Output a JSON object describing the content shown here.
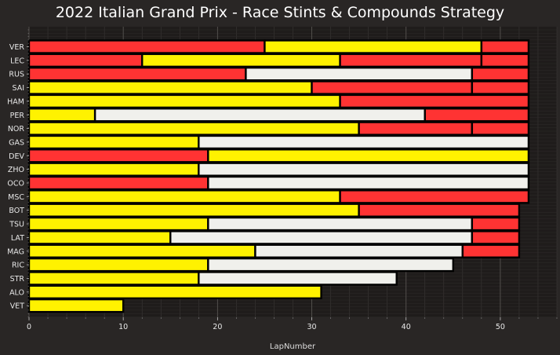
{
  "chart_data": {
    "type": "bar",
    "orientation": "horizontal",
    "stacked": true,
    "title": "2022 Italian Grand Prix - Race Stints & Compounds Strategy",
    "xlabel": "LapNumber",
    "ylabel": "",
    "xlim": [
      0,
      56
    ],
    "xticks": [
      0,
      10,
      20,
      30,
      40,
      50
    ],
    "grid": true,
    "compound_colors": {
      "SOFT": "#ff3333",
      "MEDIUM": "#fff200",
      "HARD": "#f0f0ec"
    },
    "drivers": [
      {
        "driver": "VER",
        "stints": [
          {
            "compound": "SOFT",
            "laps": 25
          },
          {
            "compound": "MEDIUM",
            "laps": 23
          },
          {
            "compound": "SOFT",
            "laps": 5
          }
        ]
      },
      {
        "driver": "LEC",
        "stints": [
          {
            "compound": "SOFT",
            "laps": 12
          },
          {
            "compound": "MEDIUM",
            "laps": 21
          },
          {
            "compound": "SOFT",
            "laps": 15
          },
          {
            "compound": "SOFT",
            "laps": 5
          }
        ]
      },
      {
        "driver": "RUS",
        "stints": [
          {
            "compound": "SOFT",
            "laps": 23
          },
          {
            "compound": "HARD",
            "laps": 24
          },
          {
            "compound": "SOFT",
            "laps": 6
          }
        ]
      },
      {
        "driver": "SAI",
        "stints": [
          {
            "compound": "MEDIUM",
            "laps": 30
          },
          {
            "compound": "SOFT",
            "laps": 17
          },
          {
            "compound": "SOFT",
            "laps": 6
          }
        ]
      },
      {
        "driver": "HAM",
        "stints": [
          {
            "compound": "MEDIUM",
            "laps": 33
          },
          {
            "compound": "SOFT",
            "laps": 20
          }
        ]
      },
      {
        "driver": "PER",
        "stints": [
          {
            "compound": "MEDIUM",
            "laps": 7
          },
          {
            "compound": "HARD",
            "laps": 35
          },
          {
            "compound": "SOFT",
            "laps": 11
          }
        ]
      },
      {
        "driver": "NOR",
        "stints": [
          {
            "compound": "MEDIUM",
            "laps": 35
          },
          {
            "compound": "SOFT",
            "laps": 12
          },
          {
            "compound": "SOFT",
            "laps": 6
          }
        ]
      },
      {
        "driver": "GAS",
        "stints": [
          {
            "compound": "MEDIUM",
            "laps": 18
          },
          {
            "compound": "HARD",
            "laps": 35
          }
        ]
      },
      {
        "driver": "DEV",
        "stints": [
          {
            "compound": "SOFT",
            "laps": 19
          },
          {
            "compound": "MEDIUM",
            "laps": 34
          }
        ]
      },
      {
        "driver": "ZHO",
        "stints": [
          {
            "compound": "MEDIUM",
            "laps": 18
          },
          {
            "compound": "HARD",
            "laps": 35
          }
        ]
      },
      {
        "driver": "OCO",
        "stints": [
          {
            "compound": "SOFT",
            "laps": 19
          },
          {
            "compound": "HARD",
            "laps": 34
          }
        ]
      },
      {
        "driver": "MSC",
        "stints": [
          {
            "compound": "MEDIUM",
            "laps": 33
          },
          {
            "compound": "SOFT",
            "laps": 20
          }
        ]
      },
      {
        "driver": "BOT",
        "stints": [
          {
            "compound": "MEDIUM",
            "laps": 35
          },
          {
            "compound": "SOFT",
            "laps": 17
          }
        ]
      },
      {
        "driver": "TSU",
        "stints": [
          {
            "compound": "MEDIUM",
            "laps": 19
          },
          {
            "compound": "HARD",
            "laps": 28
          },
          {
            "compound": "SOFT",
            "laps": 5
          }
        ]
      },
      {
        "driver": "LAT",
        "stints": [
          {
            "compound": "MEDIUM",
            "laps": 15
          },
          {
            "compound": "HARD",
            "laps": 32
          },
          {
            "compound": "SOFT",
            "laps": 5
          }
        ]
      },
      {
        "driver": "MAG",
        "stints": [
          {
            "compound": "MEDIUM",
            "laps": 24
          },
          {
            "compound": "HARD",
            "laps": 22
          },
          {
            "compound": "SOFT",
            "laps": 6
          }
        ]
      },
      {
        "driver": "RIC",
        "stints": [
          {
            "compound": "MEDIUM",
            "laps": 19
          },
          {
            "compound": "HARD",
            "laps": 26
          }
        ]
      },
      {
        "driver": "STR",
        "stints": [
          {
            "compound": "MEDIUM",
            "laps": 18
          },
          {
            "compound": "HARD",
            "laps": 21
          }
        ]
      },
      {
        "driver": "ALO",
        "stints": [
          {
            "compound": "MEDIUM",
            "laps": 31
          }
        ]
      },
      {
        "driver": "VET",
        "stints": [
          {
            "compound": "MEDIUM",
            "laps": 10
          }
        ]
      }
    ]
  }
}
